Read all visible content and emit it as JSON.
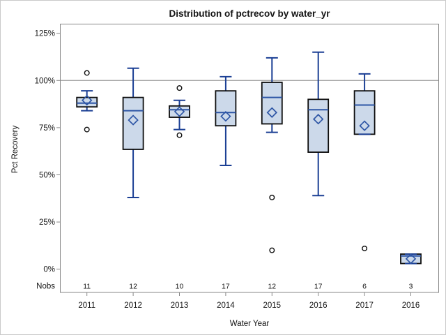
{
  "chart_data": {
    "type": "boxplot",
    "title": "Distribution of pctrecov by water_yr",
    "xlabel": "Water Year",
    "ylabel": "Pct Recovery",
    "nobs_label": "Nobs",
    "y_ticks": [
      {
        "value": 0,
        "label": "0%"
      },
      {
        "value": 25,
        "label": "25%"
      },
      {
        "value": 50,
        "label": "50%"
      },
      {
        "value": 75,
        "label": "75%"
      },
      {
        "value": 100,
        "label": "100%"
      },
      {
        "value": 125,
        "label": "125%"
      }
    ],
    "ylim": [
      0,
      125
    ],
    "reference_line": 100,
    "grid": false,
    "legend": "none",
    "categories": [
      "2011",
      "2012",
      "2013",
      "2014",
      "2015",
      "2016",
      "2017",
      "2016"
    ],
    "nobs": [
      11,
      12,
      10,
      17,
      12,
      17,
      6,
      3
    ],
    "boxes": [
      {
        "category": "2011",
        "nobs": 11,
        "whisker_low": 84,
        "q1": 86,
        "median": 88,
        "q3": 91,
        "whisker_high": 94.5,
        "mean": 89.5,
        "outliers": [
          104,
          74
        ]
      },
      {
        "category": "2012",
        "nobs": 12,
        "whisker_low": 38,
        "q1": 63.5,
        "median": 84,
        "q3": 91,
        "whisker_high": 106.5,
        "mean": 79,
        "outliers": []
      },
      {
        "category": "2013",
        "nobs": 10,
        "whisker_low": 74,
        "q1": 80.5,
        "median": 84.5,
        "q3": 86.5,
        "whisker_high": 89.5,
        "mean": 83.5,
        "outliers": [
          96,
          71
        ]
      },
      {
        "category": "2014",
        "nobs": 17,
        "whisker_low": 55,
        "q1": 76,
        "median": 83,
        "q3": 94.5,
        "whisker_high": 102,
        "mean": 81,
        "outliers": []
      },
      {
        "category": "2015",
        "nobs": 12,
        "whisker_low": 72.5,
        "q1": 77,
        "median": 91,
        "q3": 99,
        "whisker_high": 112,
        "mean": 83,
        "outliers": [
          38,
          10
        ]
      },
      {
        "category": "2016",
        "nobs": 17,
        "whisker_low": 39,
        "q1": 62,
        "median": 84.5,
        "q3": 90,
        "whisker_high": 115,
        "mean": 79.5,
        "outliers": []
      },
      {
        "category": "2017",
        "nobs": 6,
        "whisker_low": 71.5,
        "q1": 71.5,
        "median": 87,
        "q3": 94.5,
        "whisker_high": 103.5,
        "mean": 76,
        "outliers": [
          11
        ]
      },
      {
        "category": "2016",
        "nobs": 3,
        "whisker_low": 3,
        "q1": 3,
        "median": 7,
        "q3": 8,
        "whisker_high": 8,
        "mean": 5.5,
        "outliers": []
      }
    ],
    "colors": {
      "box_fill": "#ccd9ea",
      "box_border": "#0d0d0d",
      "median": "#2d55a5",
      "whisker": "#1b3f94",
      "mean_marker": "#2d55a5",
      "outlier": "#0d0d0d",
      "axis": "#878787",
      "reference": "#a8a8a8",
      "text": "#141414"
    }
  }
}
